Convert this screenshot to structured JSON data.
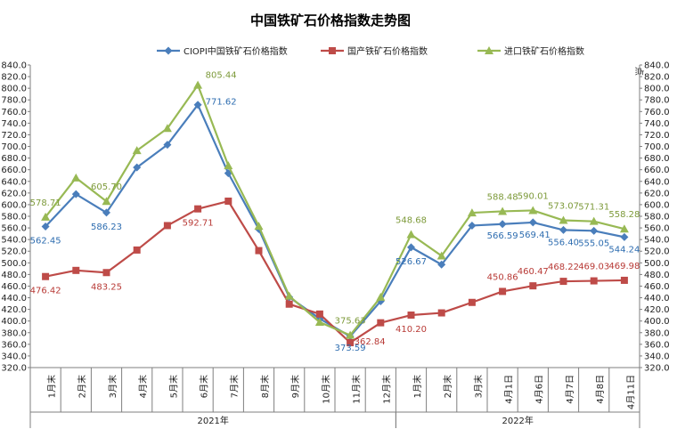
{
  "chart_data": {
    "type": "line",
    "title": "中国铁矿石价格指数走势图",
    "right_axis_label": "点",
    "ylim": [
      320,
      840
    ],
    "y_ticks": [
      "320.0",
      "340.0",
      "360.0",
      "380.0",
      "400.0",
      "420.0",
      "440.0",
      "460.0",
      "480.0",
      "500.0",
      "520.0",
      "540.0",
      "560.0",
      "580.0",
      "600.0",
      "620.0",
      "640.0",
      "660.0",
      "680.0",
      "700.0",
      "720.0",
      "740.0",
      "760.0",
      "780.0",
      "800.0",
      "820.0",
      "840.0"
    ],
    "categories": [
      "1月末",
      "2月末",
      "3月末",
      "4月末",
      "5月末",
      "6月末",
      "7月末",
      "8月末",
      "9月末",
      "10月末",
      "11月末",
      "12月末",
      "1月末",
      "2月末",
      "3月末",
      "4月1日",
      "4月6日",
      "4月7日",
      "4月8日",
      "4月11日"
    ],
    "groups": [
      {
        "label": "2021年",
        "start": 0,
        "end": 11
      },
      {
        "label": "2022年",
        "start": 12,
        "end": 19
      }
    ],
    "legend_position": "top",
    "grid": false,
    "series": [
      {
        "name": "CIOPI中国铁矿石价格指数",
        "color": "#4a7ebb",
        "marker": "diamond",
        "values": [
          562.45,
          618,
          586.23,
          664,
          703,
          771.62,
          654,
          558,
          441,
          404,
          373.59,
          434,
          526.67,
          497,
          564,
          566.59,
          569.41,
          556.4,
          555.05,
          544.24
        ],
        "labels": {
          "0": "562.45",
          "2": "586.23",
          "5": "771.62",
          "10": "373.59",
          "12": "526.67",
          "15": "566.59",
          "16": "569.41",
          "17": "556.40",
          "18": "555.05",
          "19": "544.24"
        }
      },
      {
        "name": "国产铁矿石价格指数",
        "color": "#be4b48",
        "marker": "square",
        "values": [
          476.42,
          487,
          483.25,
          522,
          564,
          592.71,
          606,
          521,
          429,
          412,
          362.84,
          397,
          410.2,
          414,
          432,
          450.86,
          460.47,
          468.22,
          469.03,
          469.98
        ],
        "labels": {
          "0": "476.42",
          "2": "483.25",
          "5": "592.71",
          "10": "362.84",
          "12": "410.20",
          "15": "450.86",
          "16": "460.47",
          "17": "468.22",
          "18": "469.03",
          "19": "469.98"
        }
      },
      {
        "name": "进口铁矿石价格指数",
        "color": "#98b954",
        "marker": "triangle",
        "values": [
          578.71,
          646,
          605.7,
          693,
          731,
          805.44,
          667,
          563,
          443,
          398,
          375.63,
          441,
          548.68,
          512,
          586,
          588.48,
          590.01,
          573.07,
          571.31,
          558.28
        ],
        "labels": {
          "0": "578.71",
          "2": "605.70",
          "5": "805.44",
          "10": "375.63",
          "12": "548.68",
          "15": "588.48",
          "16": "590.01",
          "17": "573.07",
          "18": "571.31",
          "19": "558.28"
        }
      }
    ]
  }
}
